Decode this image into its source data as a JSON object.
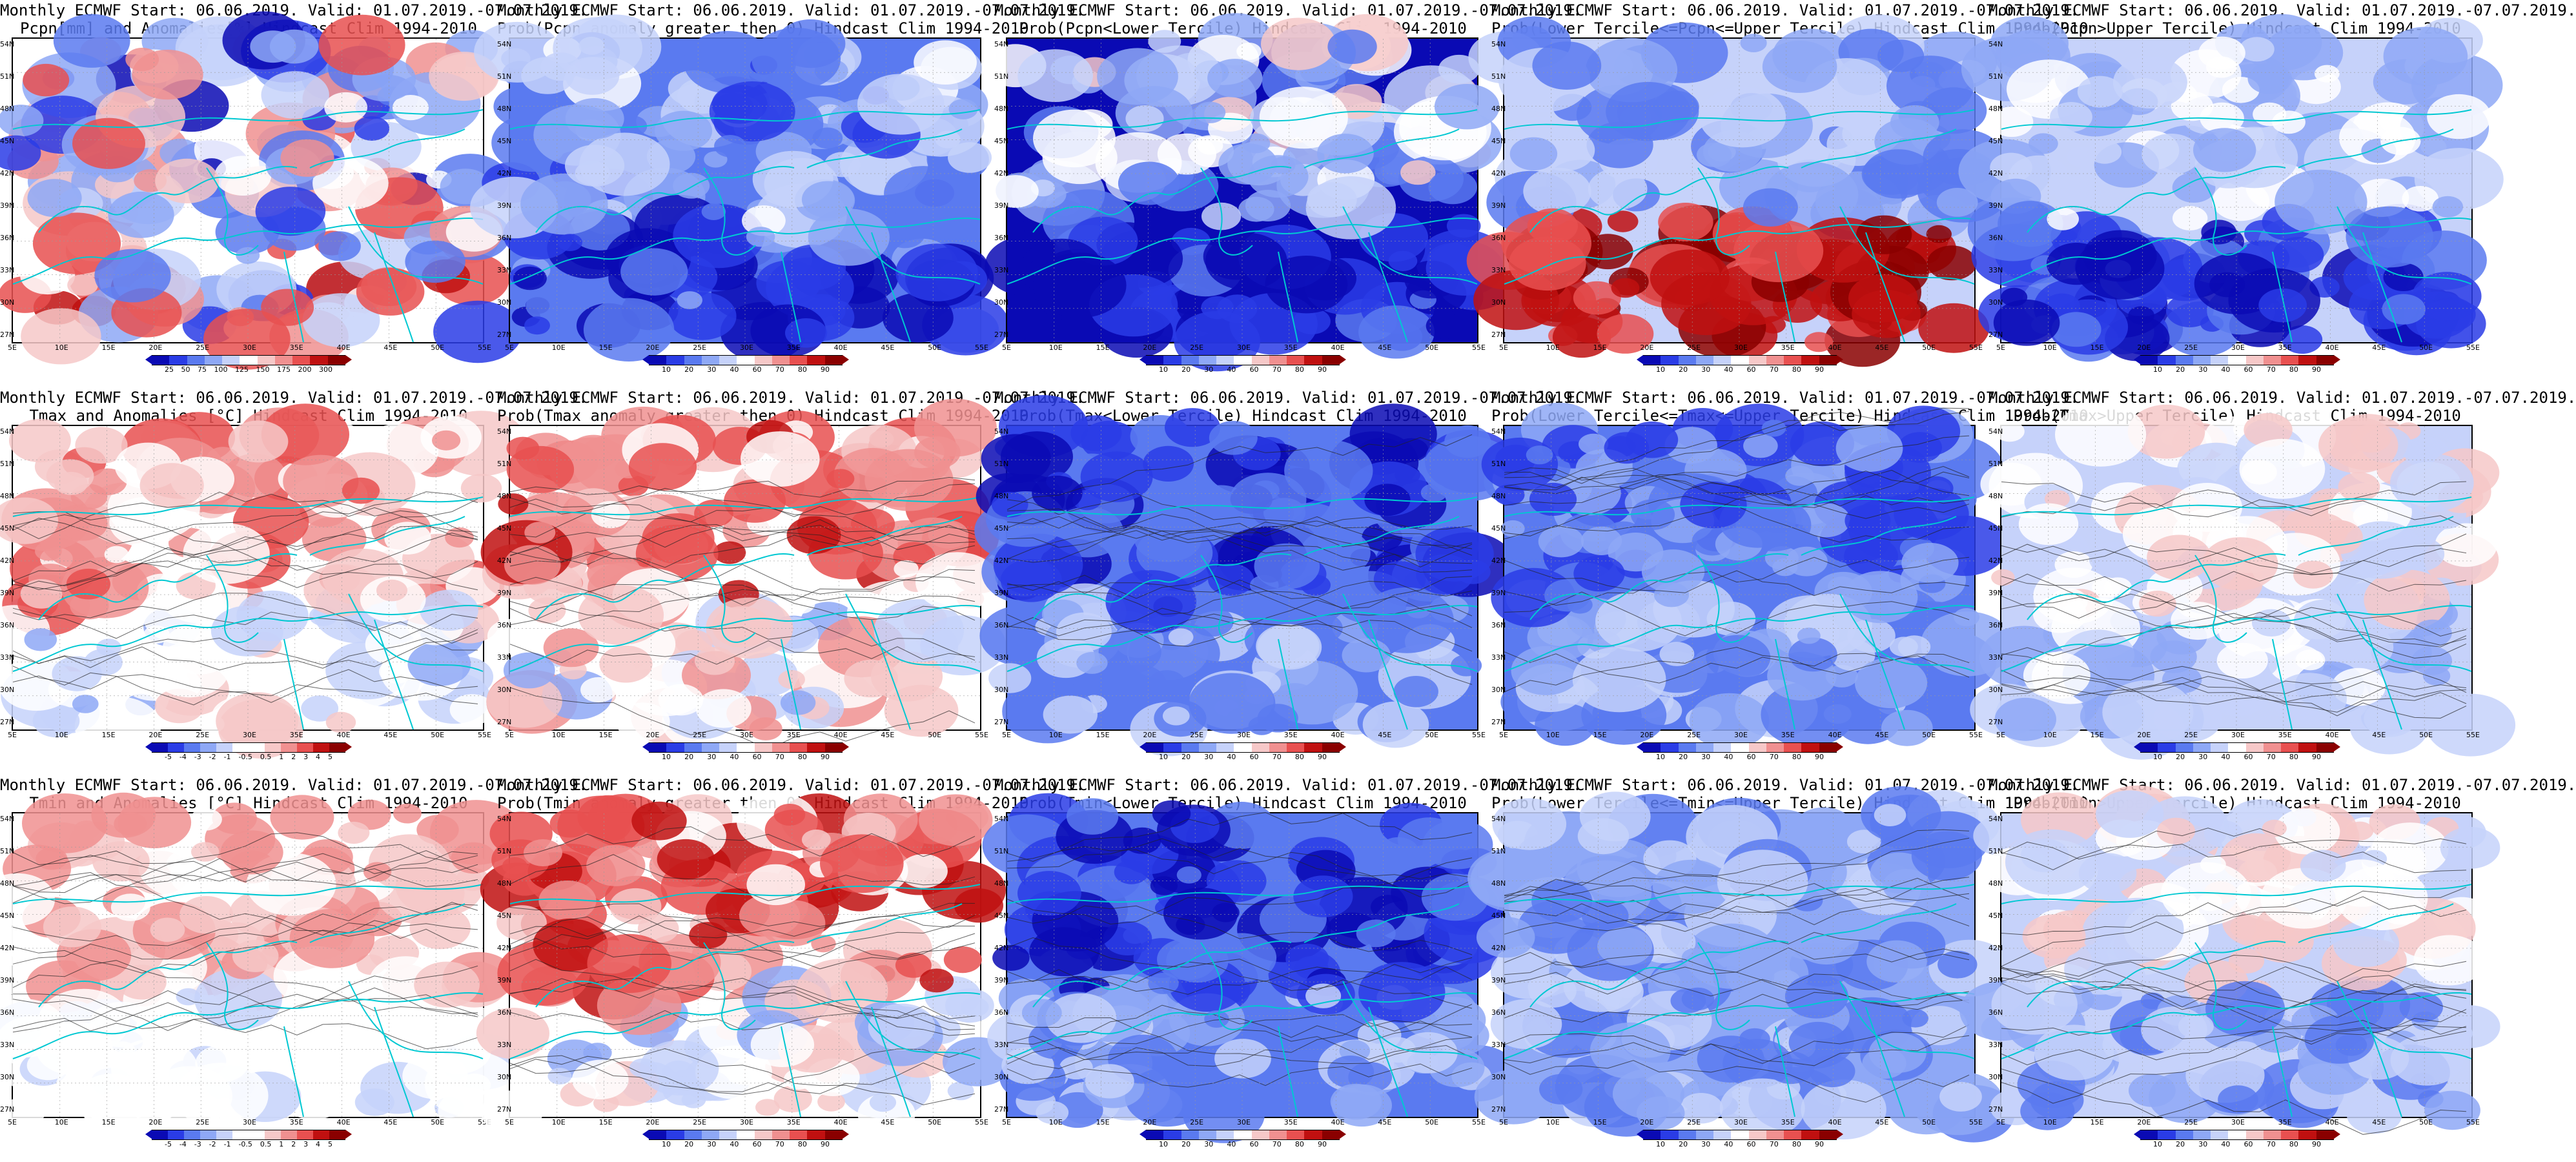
{
  "figure": {
    "panels": [
      {
        "id": "r1c1",
        "line1": "Monthly ECMWF Start: 06.06.2019. Valid: 01.07.2019.-07.07.2019.",
        "line2": "Pcpn[mm] and Anomalies[%] Hindcast Clim 1994-2010",
        "palette": "precip_anom",
        "cbar_ticks": [
          "25",
          "50",
          "75",
          "100",
          "125",
          "150",
          "175",
          "200",
          "300"
        ]
      },
      {
        "id": "r1c2",
        "line1": "Monthly ECMWF Start: 06.06.2019. Valid: 01.07.2019.-07.07.2019.",
        "line2": "Prob(Pcpn anomaly greater then 0) Hindcast Clim 1994-2010",
        "palette": "prob",
        "cbar_ticks": [
          "10",
          "20",
          "30",
          "40",
          "60",
          "70",
          "80",
          "90"
        ]
      },
      {
        "id": "r1c3",
        "line1": "Monthly ECMWF Start: 06.06.2019. Valid: 01.07.2019.-07.07.2019.",
        "line2": "Prob(Pcpn<Lower Tercile) Hindcast Clim 1994-2010",
        "palette": "prob",
        "cbar_ticks": [
          "10",
          "20",
          "30",
          "40",
          "60",
          "70",
          "80",
          "90"
        ]
      },
      {
        "id": "r1c4",
        "line1": "Monthly ECMWF Start: 06.06.2019. Valid: 01.07.2019.-07.07.2019.",
        "line2": "Prob(Lower Tercile<=Pcpn<=Upper Tercile) Hindcast Clim 1994-2010",
        "palette": "prob",
        "cbar_ticks": [
          "10",
          "20",
          "30",
          "40",
          "60",
          "70",
          "80",
          "90"
        ]
      },
      {
        "id": "r1c5",
        "line1": "Monthly ECMWF Start: 06.06.2019. Valid: 01.07.2019.-07.07.2019.",
        "line2": "Prob(Pcpn>Upper Tercile) Hindcast Clim 1994-2010",
        "palette": "prob",
        "cbar_ticks": [
          "10",
          "20",
          "30",
          "40",
          "60",
          "70",
          "80",
          "90"
        ]
      },
      {
        "id": "r2c1",
        "line1": "Monthly ECMWF Start: 06.06.2019. Valid: 01.07.2019.-07.07.2019.",
        "line2": "Tmax and Anomalies [°C] Hindcast Clim 1994-2010",
        "palette": "temp_anom",
        "cbar_ticks": [
          "-5",
          "-4",
          "-3",
          "-2",
          "-1",
          "-0.5",
          "0.5",
          "1",
          "2",
          "3",
          "4",
          "5"
        ]
      },
      {
        "id": "r2c2",
        "line1": "Monthly ECMWF Start: 06.06.2019. Valid: 01.07.2019.-07.07.2019.",
        "line2": "Prob(Tmax anomaly greater then 0) Hindcast Clim 1994-2010",
        "palette": "prob",
        "cbar_ticks": [
          "10",
          "20",
          "30",
          "40",
          "60",
          "70",
          "80",
          "90"
        ]
      },
      {
        "id": "r2c3",
        "line1": "Monthly ECMWF Start: 06.06.2019. Valid: 01.07.2019.-07.07.2019.",
        "line2": "Prob(Tmax<Lower Tercile) Hindcast Clim 1994-2010",
        "palette": "prob",
        "cbar_ticks": [
          "10",
          "20",
          "30",
          "40",
          "60",
          "70",
          "80",
          "90"
        ]
      },
      {
        "id": "r2c4",
        "line1": "Monthly ECMWF Start: 06.06.2019. Valid: 01.07.2019.-07.07.2019.",
        "line2": "Prob(Lower Tercile<=Tmax<=Upper Tercile) Hindcast Clim 1994-2010",
        "palette": "prob",
        "cbar_ticks": [
          "10",
          "20",
          "30",
          "40",
          "60",
          "70",
          "80",
          "90"
        ]
      },
      {
        "id": "r2c5",
        "line1": "Monthly ECMWF Start: 06.06.2019. Valid: 01.07.2019.-07.07.2019.",
        "line2": "Prob(Tmax>Upper Tercile) Hindcast Clim 1994-2010",
        "palette": "prob",
        "cbar_ticks": [
          "10",
          "20",
          "30",
          "40",
          "60",
          "70",
          "80",
          "90"
        ]
      },
      {
        "id": "r3c1",
        "line1": "Monthly ECMWF Start: 06.06.2019. Valid: 01.07.2019.-07.07.2019.",
        "line2": "Tmin and Anomalies [°C] Hindcast Clim 1994-2010",
        "palette": "temp_anom",
        "cbar_ticks": [
          "-5",
          "-4",
          "-3",
          "-2",
          "-1",
          "-0.5",
          "0.5",
          "1",
          "2",
          "3",
          "4",
          "5"
        ]
      },
      {
        "id": "r3c2",
        "line1": "Monthly ECMWF Start: 06.06.2019. Valid: 01.07.2019.-07.07.2019.",
        "line2": "Prob(Tmin anomaly greater then 0) Hindcast Clim 1994-2010",
        "palette": "prob",
        "cbar_ticks": [
          "10",
          "20",
          "30",
          "40",
          "60",
          "70",
          "80",
          "90"
        ]
      },
      {
        "id": "r3c3",
        "line1": "Monthly ECMWF Start: 06.06.2019. Valid: 01.07.2019.-07.07.2019.",
        "line2": "Prob(Tmin<Lower Tercile) Hindcast Clim 1994-2010",
        "palette": "prob",
        "cbar_ticks": [
          "10",
          "20",
          "30",
          "40",
          "60",
          "70",
          "80",
          "90"
        ]
      },
      {
        "id": "r3c4",
        "line1": "Monthly ECMWF Start: 06.06.2019. Valid: 01.07.2019.-07.07.2019.",
        "line2": "Prob(Lower Tercile<=Tmin<=Upper Tercile) Hindcast Clim 1994-2010",
        "palette": "prob",
        "cbar_ticks": [
          "10",
          "20",
          "30",
          "40",
          "60",
          "70",
          "80",
          "90"
        ]
      },
      {
        "id": "r3c5",
        "line1": "Monthly ECMWF Start: 06.06.2019. Valid: 01.07.2019.-07.07.2019.",
        "line2": "Prob(Tmin>Upper Tercile) Hindcast Clim 1994-2010",
        "palette": "prob",
        "cbar_ticks": [
          "10",
          "20",
          "30",
          "40",
          "60",
          "70",
          "80",
          "90"
        ]
      }
    ],
    "lat_ticks": [
      "54N",
      "51N",
      "48N",
      "45N",
      "42N",
      "39N",
      "36N",
      "33N",
      "30N",
      "27N"
    ],
    "lon_ticks": [
      "5E",
      "10E",
      "15E",
      "20E",
      "25E",
      "30E",
      "35E",
      "40E",
      "45E",
      "50E",
      "55E"
    ],
    "palettes": {
      "prob": [
        "#0a0ab4",
        "#2a3ce6",
        "#5a7af0",
        "#8ea8f6",
        "#c6d2fa",
        "#ffffff",
        "#f6c8c8",
        "#f09090",
        "#e85050",
        "#c01010",
        "#8a0000"
      ],
      "precip_anom": [
        "#0a0ab4",
        "#2a3ce6",
        "#5a7af0",
        "#8ea8f6",
        "#c6d2fa",
        "#ffffff",
        "#f6c8c8",
        "#f09090",
        "#e85050",
        "#c01010",
        "#8a0000"
      ],
      "temp_anom": [
        "#0a0ab4",
        "#2a3ce6",
        "#5a7af0",
        "#8ea8f6",
        "#c6d2fa",
        "#ffffff",
        "#ffffff",
        "#f6c8c8",
        "#f09090",
        "#e85050",
        "#c01010",
        "#8a0000"
      ]
    },
    "colors": {
      "coast": "#00c8d2",
      "contour": "#222222",
      "grid": "#9a9a9a"
    }
  }
}
